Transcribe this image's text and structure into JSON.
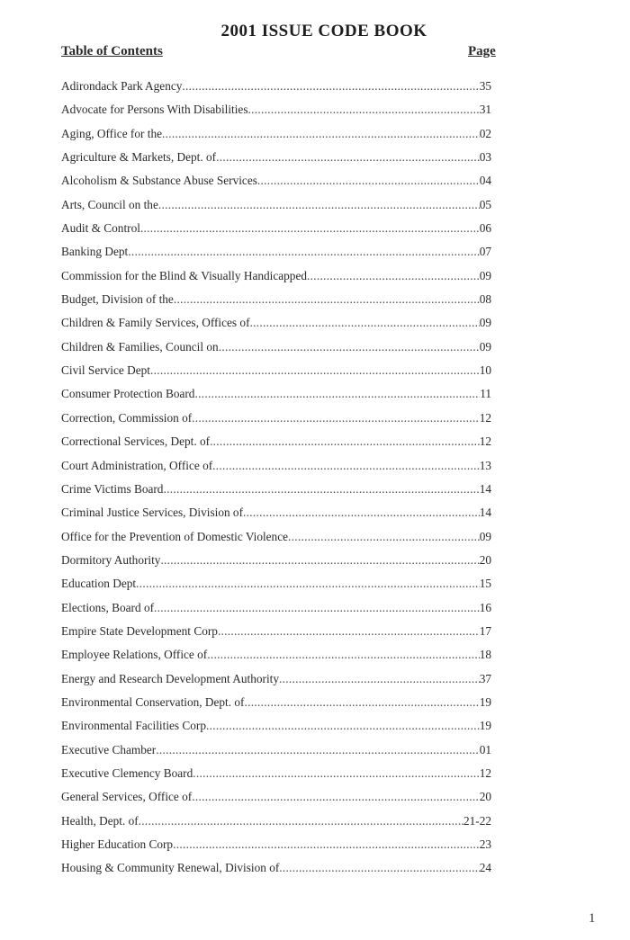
{
  "title": "2001 ISSUE CODE BOOK",
  "toc_heading": "Table of Contents",
  "page_heading": "Page",
  "entries": [
    {
      "name": "Adirondack Park Agency",
      "page": "35"
    },
    {
      "name": "Advocate for Persons With Disabilities",
      "page": "31"
    },
    {
      "name": "Aging, Office for the",
      "page": "02"
    },
    {
      "name": "Agriculture & Markets, Dept. of",
      "page": "03"
    },
    {
      "name": "Alcoholism & Substance Abuse Services",
      "page": "04"
    },
    {
      "name": "Arts, Council on the ",
      "page": "05"
    },
    {
      "name": "Audit & Control",
      "page": "06"
    },
    {
      "name": "Banking Dept",
      "page": "07"
    },
    {
      "name": "Commission for the Blind & Visually Handicapped",
      "page": "09"
    },
    {
      "name": "Budget, Division of the",
      "page": "08"
    },
    {
      "name": "Children & Family Services, Offices of",
      "page": "09"
    },
    {
      "name": "Children & Families, Council on",
      "page": "09"
    },
    {
      "name": "Civil Service Dept",
      "page": "10"
    },
    {
      "name": "Consumer Protection Board",
      "page": "11"
    },
    {
      "name": "Correction, Commission of",
      "page": "12"
    },
    {
      "name": "Correctional Services, Dept. of",
      "page": "12"
    },
    {
      "name": "Court Administration, Office of",
      "page": "13"
    },
    {
      "name": "Crime Victims Board",
      "page": "14"
    },
    {
      "name": "Criminal Justice Services, Division of",
      "page": "14"
    },
    {
      "name": "Office for the Prevention of Domestic Violence",
      "page": "09"
    },
    {
      "name": "Dormitory Authority",
      "page": "20"
    },
    {
      "name": "Education Dept",
      "page": "15"
    },
    {
      "name": "Elections, Board of",
      "page": "16"
    },
    {
      "name": "Empire State Development Corp",
      "page": "17"
    },
    {
      "name": "Employee Relations, Office of",
      "page": "18"
    },
    {
      "name": "Energy and Research Development Authority",
      "page": "37"
    },
    {
      "name": "Environmental Conservation, Dept. of",
      "page": "19"
    },
    {
      "name": "Environmental Facilities Corp",
      "page": "19"
    },
    {
      "name": "Executive Chamber",
      "page": "01"
    },
    {
      "name": "Executive Clemency Board",
      "page": "12"
    },
    {
      "name": "General Services, Office of",
      "page": "20"
    },
    {
      "name": "Health, Dept. of",
      "page": "21-22"
    },
    {
      "name": "Higher Education Corp",
      "page": "23"
    },
    {
      "name": "Housing & Community Renewal, Division of",
      "page": "24"
    }
  ],
  "page_number": "1"
}
